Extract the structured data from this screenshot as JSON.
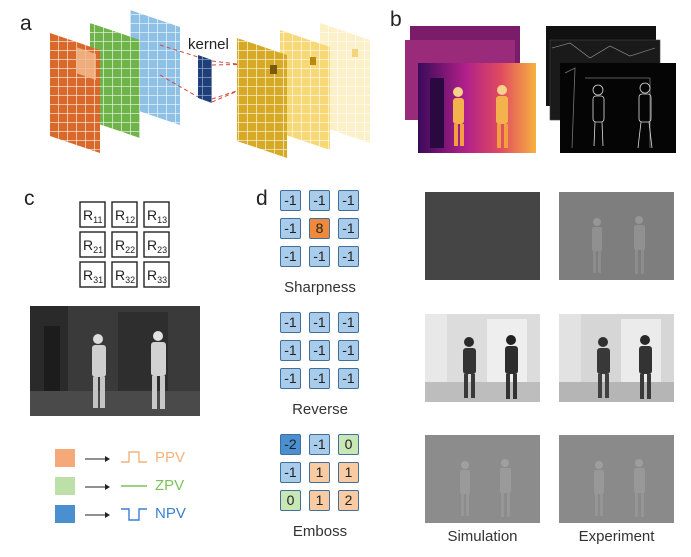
{
  "panels": {
    "a": {
      "letter": "a",
      "kernel_label": "kernel",
      "input_colors": [
        "#d9692a",
        "#6fb44a",
        "#8fc0e6"
      ],
      "output_colors": [
        "#d6aa25",
        "#f7d877",
        "#fcf0c8"
      ]
    },
    "b": {
      "letter": "b"
    },
    "c": {
      "letter": "c",
      "resistors": [
        [
          {
            "base": "R",
            "sub": "11"
          },
          {
            "base": "R",
            "sub": "12"
          },
          {
            "base": "R",
            "sub": "13"
          }
        ],
        [
          {
            "base": "R",
            "sub": "21"
          },
          {
            "base": "R",
            "sub": "22"
          },
          {
            "base": "R",
            "sub": "23"
          }
        ],
        [
          {
            "base": "R",
            "sub": "31"
          },
          {
            "base": "R",
            "sub": "32"
          },
          {
            "base": "R",
            "sub": "33"
          }
        ]
      ],
      "legend": [
        {
          "label": "PPV",
          "color": "#f6a978",
          "line_color": "#f2b37a"
        },
        {
          "label": "ZPV",
          "color": "#bde0a8",
          "line_color": "#7cc25b"
        },
        {
          "label": "NPV",
          "color": "#4a8fd0",
          "line_color": "#3a7fd0"
        }
      ]
    },
    "d": {
      "letter": "d",
      "kernels": [
        {
          "name": "Sharpness",
          "cells": [
            [
              "-1",
              "-1",
              "-1"
            ],
            [
              "-1",
              "8",
              "-1"
            ],
            [
              "-1",
              "-1",
              "-1"
            ]
          ],
          "types": [
            [
              "n",
              "n",
              "n"
            ],
            [
              "n",
              "p",
              "n"
            ],
            [
              "n",
              "n",
              "n"
            ]
          ]
        },
        {
          "name": "Reverse",
          "cells": [
            [
              "-1",
              "-1",
              "-1"
            ],
            [
              "-1",
              "-1",
              "-1"
            ],
            [
              "-1",
              "-1",
              "-1"
            ]
          ],
          "types": [
            [
              "n",
              "n",
              "n"
            ],
            [
              "n",
              "n",
              "n"
            ],
            [
              "n",
              "n",
              "n"
            ]
          ]
        },
        {
          "name": "Emboss",
          "cells": [
            [
              "-2",
              "-1",
              "0"
            ],
            [
              "-1",
              "1",
              "1"
            ],
            [
              "0",
              "1",
              "2"
            ]
          ],
          "types": [
            [
              "dn",
              "n",
              "z"
            ],
            [
              "n",
              "lp",
              "lp"
            ],
            [
              "z",
              "lp",
              "lp"
            ]
          ]
        }
      ],
      "cell_colors": {
        "n": "#a9cceb",
        "p": "#ef8a3c",
        "dn": "#4a8fd0",
        "z": "#c9e6b5",
        "lp": "#f8cba3"
      },
      "columns": [
        "Simulation",
        "Experiment"
      ]
    }
  }
}
